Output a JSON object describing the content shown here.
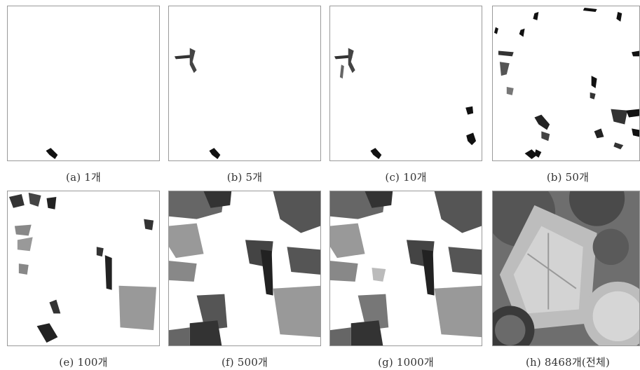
{
  "panels": [
    {
      "caption": "(a) 1개"
    },
    {
      "caption": "(b) 5개"
    },
    {
      "caption": "(c) 10개"
    },
    {
      "caption": "(b) 50개"
    },
    {
      "caption": "(e) 100개"
    },
    {
      "caption": "(f) 500개"
    },
    {
      "caption": "(g) 1000개"
    },
    {
      "caption": "(h) 8468개(전체)"
    }
  ]
}
